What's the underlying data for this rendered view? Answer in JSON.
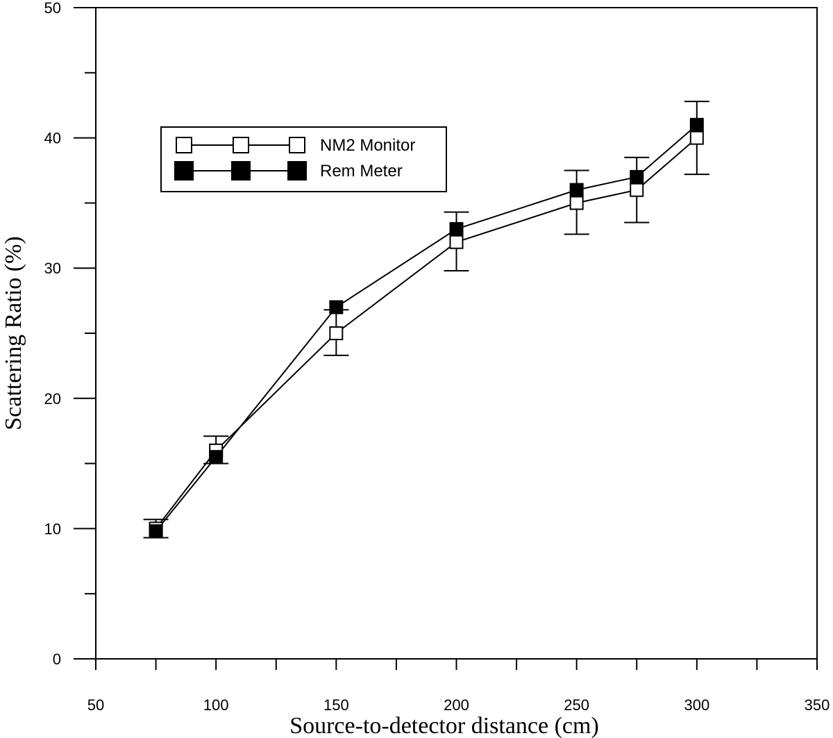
{
  "chart_data": {
    "type": "line",
    "xlabel": "Source-to-detector distance (cm)",
    "ylabel": "Scattering Ratio (%)",
    "xlim": [
      50,
      350
    ],
    "ylim": [
      0,
      50
    ],
    "x_major_ticks": [
      50,
      100,
      150,
      200,
      250,
      300,
      350
    ],
    "x_minor_ticks": [
      75,
      125,
      175,
      225,
      275,
      325
    ],
    "y_major_ticks": [
      0,
      10,
      20,
      30,
      40,
      50
    ],
    "y_minor_ticks": [
      5,
      15,
      25,
      35,
      45
    ],
    "x_tick_labels": [
      "50",
      "100",
      "150",
      "200",
      "250",
      "300",
      "350"
    ],
    "y_tick_labels": [
      "0",
      "10",
      "20",
      "30",
      "40",
      "50"
    ],
    "grid": false,
    "legend_position": "upper-left",
    "x": [
      75,
      100,
      150,
      200,
      250,
      275,
      300
    ],
    "series": [
      {
        "name": "NM2 Monitor",
        "marker": "open-square",
        "color": "#000000",
        "values": [
          10.0,
          16.0,
          25.0,
          32.0,
          35.0,
          36.0,
          40.0
        ],
        "err_low": [
          9.3,
          15.0,
          23.3,
          29.8,
          32.6,
          33.5,
          37.2
        ],
        "err_high": [
          10.7,
          17.1,
          26.8,
          34.3,
          37.5,
          38.5,
          42.8
        ]
      },
      {
        "name": "Rem Meter",
        "marker": "filled-square",
        "color": "#000000",
        "values": [
          9.8,
          15.5,
          27.0,
          33.0,
          36.0,
          37.0,
          41.0
        ]
      }
    ]
  }
}
